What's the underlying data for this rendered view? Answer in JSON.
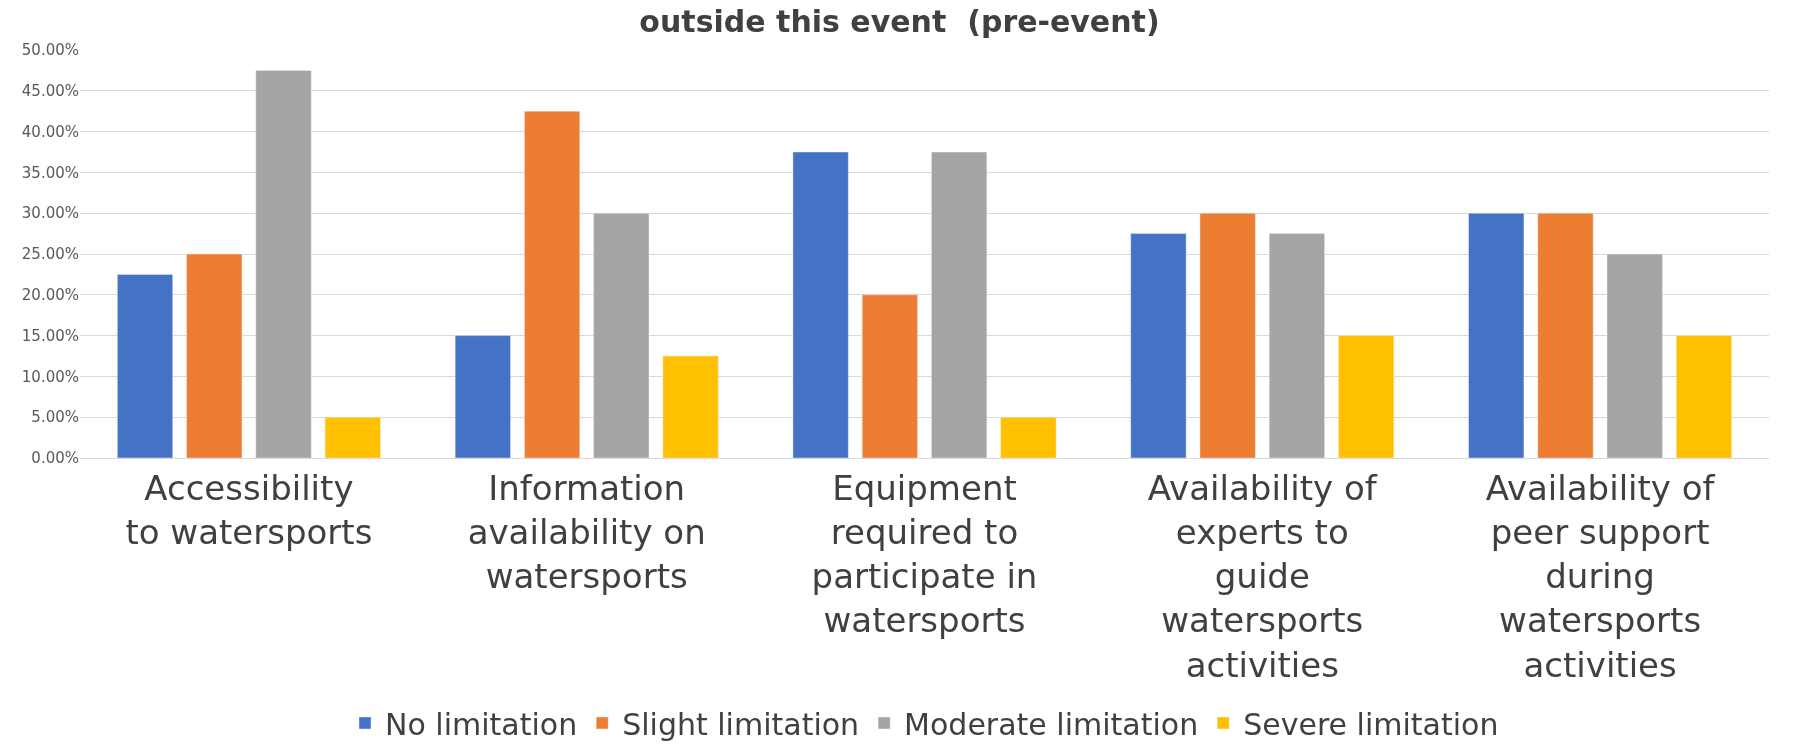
{
  "chart_data": {
    "type": "bar",
    "title": "outside this event  (pre-event)",
    "categories": [
      "Accessibility to watersports",
      "Information availability on watersports",
      "Equipment required to participate in watersports",
      "Availability of experts to guide watersports activities",
      "Availability of peer support during watersports activities"
    ],
    "series": [
      {
        "name": "No limitation",
        "color": "#4472c4",
        "values": [
          22.5,
          15,
          37.5,
          27.5,
          30
        ]
      },
      {
        "name": "Slight limitation",
        "color": "#ed7d31",
        "values": [
          25,
          42.5,
          20,
          30,
          30
        ]
      },
      {
        "name": "Moderate limitation",
        "color": "#a5a5a5",
        "values": [
          47.5,
          30,
          37.5,
          27.5,
          25
        ]
      },
      {
        "name": "Severe limitation",
        "color": "#ffc000",
        "values": [
          5,
          12.5,
          5,
          15,
          15
        ]
      }
    ],
    "ylim": [
      0,
      50
    ],
    "yticks": [
      {
        "value": 0,
        "label": "0.00%"
      },
      {
        "value": 5,
        "label": "5.00%"
      },
      {
        "value": 10,
        "label": "10.00%"
      },
      {
        "value": 15,
        "label": "15.00%"
      },
      {
        "value": 20,
        "label": "20.00%"
      },
      {
        "value": 25,
        "label": "25.00%"
      },
      {
        "value": 30,
        "label": "30.00%"
      },
      {
        "value": 35,
        "label": "35.00%"
      },
      {
        "value": 40,
        "label": "40.00%"
      },
      {
        "value": 45,
        "label": "45.00%"
      },
      {
        "value": 50,
        "label": "50.00%"
      }
    ],
    "grid": "y",
    "legend": "bottom"
  }
}
